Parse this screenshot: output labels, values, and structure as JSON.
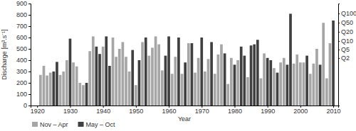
{
  "chart_data": {
    "type": "bar",
    "x_label": "Year",
    "y_label": "Discharge [m³.s⁻¹]",
    "x": [
      1921,
      1922,
      1923,
      1924,
      1925,
      1926,
      1927,
      1928,
      1929,
      1930,
      1931,
      1932,
      1933,
      1934,
      1935,
      1936,
      1937,
      1938,
      1939,
      1940,
      1941,
      1942,
      1943,
      1944,
      1945,
      1946,
      1947,
      1948,
      1949,
      1950,
      1951,
      1952,
      1953,
      1954,
      1955,
      1956,
      1957,
      1958,
      1959,
      1960,
      1961,
      1962,
      1963,
      1964,
      1965,
      1966,
      1967,
      1968,
      1969,
      1970,
      1971,
      1972,
      1973,
      1974,
      1975,
      1976,
      1977,
      1978,
      1979,
      1980,
      1981,
      1982,
      1983,
      1984,
      1985,
      1986,
      1987,
      1988,
      1989,
      1990,
      1991,
      1992,
      1993,
      1994,
      1995,
      1996,
      1997,
      1998,
      1999,
      2000,
      2001,
      2002,
      2003,
      2004,
      2005,
      2006,
      2007,
      2008,
      2009,
      2010
    ],
    "series": [
      {
        "name": "Nov – Apr",
        "color": "#a6a6a6",
        "values": [
          270,
          350,
          265,
          290,
          null,
          null,
          270,
          300,
          400,
          null,
          380,
          345,
          200,
          180,
          null,
          480,
          610,
          null,
          null,
          520,
          null,
          null,
          600,
          430,
          500,
          560,
          430,
          300,
          null,
          180,
          null,
          560,
          null,
          440,
          510,
          610,
          540,
          310,
          null,
          null,
          280,
          430,
          null,
          280,
          null,
          550,
          null,
          290,
          420,
          null,
          300,
          410,
          null,
          280,
          450,
          540,
          null,
          190,
          420,
          null,
          400,
          null,
          null,
          250,
          null,
          null,
          null,
          240,
          460,
          null,
          null,
          330,
          null,
          380,
          420,
          null,
          null,
          370,
          450,
          380,
          380,
          null,
          280,
          370,
          500,
          null,
          730,
          240,
          550,
          null
        ]
      },
      {
        "name": "May – Oct",
        "color": "#404040",
        "values": [
          null,
          null,
          null,
          null,
          300,
          385,
          null,
          null,
          null,
          590,
          null,
          null,
          null,
          null,
          200,
          null,
          null,
          520,
          455,
          null,
          610,
          350,
          null,
          null,
          null,
          null,
          null,
          null,
          490,
          null,
          400,
          null,
          600,
          null,
          null,
          null,
          null,
          null,
          440,
          610,
          null,
          null,
          600,
          null,
          380,
          null,
          550,
          null,
          null,
          600,
          null,
          null,
          560,
          null,
          null,
          null,
          460,
          null,
          null,
          360,
          null,
          520,
          440,
          null,
          530,
          540,
          580,
          null,
          null,
          420,
          400,
          null,
          290,
          null,
          null,
          360,
          810,
          null,
          null,
          null,
          null,
          440,
          null,
          null,
          null,
          360,
          null,
          null,
          null,
          750
        ]
      }
    ],
    "xlim": [
      1918,
      2011.5
    ],
    "xticks": [
      1920,
      1930,
      1940,
      1950,
      1960,
      1970,
      1980,
      1990,
      2000,
      2010
    ],
    "ylim": [
      0,
      900
    ],
    "yticks": [
      0,
      100,
      200,
      300,
      400,
      500,
      600,
      700,
      800,
      900
    ],
    "y2lim": [
      0,
      900
    ],
    "y2ticks": [
      {
        "value": 812,
        "label": "Q100"
      },
      {
        "value": 731,
        "label": "Q50"
      },
      {
        "value": 650,
        "label": "Q20"
      },
      {
        "value": 569,
        "label": "Q10"
      },
      {
        "value": 494,
        "label": "Q5"
      },
      {
        "value": 419,
        "label": "Q2"
      }
    ],
    "grid": false,
    "legend": "bottom-left"
  }
}
